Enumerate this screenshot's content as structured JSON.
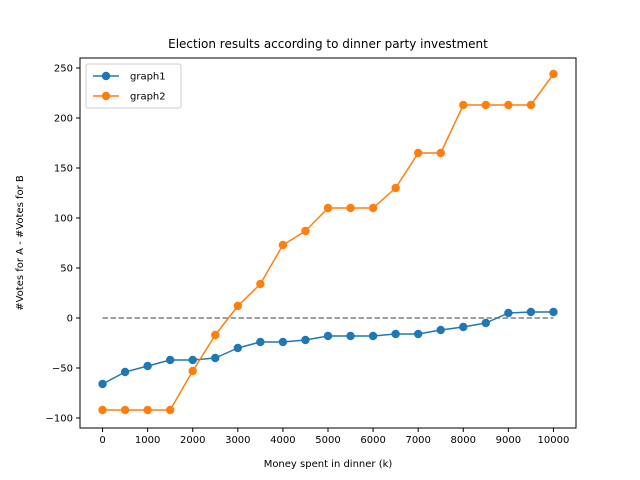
{
  "chart_data": {
    "type": "line",
    "title": "Election results according to dinner party investment",
    "xlabel": "Money spent in dinner (k)",
    "ylabel": "#Votes for A - #Votes for B",
    "xlim": [
      -500,
      10500
    ],
    "ylim": [
      -110,
      260
    ],
    "x_ticks": [
      0,
      1000,
      2000,
      3000,
      4000,
      5000,
      6000,
      7000,
      8000,
      9000,
      10000
    ],
    "y_ticks": [
      -100,
      -50,
      0,
      50,
      100,
      150,
      200,
      250
    ],
    "grid": false,
    "legend_position": "upper-left",
    "x": [
      0,
      500,
      1000,
      1500,
      2000,
      2500,
      3000,
      3500,
      4000,
      4500,
      5000,
      5500,
      6000,
      6500,
      7000,
      7500,
      8000,
      8500,
      9000,
      9500,
      10000
    ],
    "series": [
      {
        "name": "graph1",
        "color": "#1f77b4",
        "marker": "circle",
        "values": [
          -66,
          -54,
          -48,
          -42,
          -42,
          -40,
          -30,
          -24,
          -24,
          -22,
          -18,
          -18,
          -18,
          -16,
          -16,
          -12,
          -9,
          -5,
          5,
          6,
          6
        ]
      },
      {
        "name": "graph2",
        "color": "#ff7f0e",
        "marker": "circle",
        "values": [
          -92,
          -92,
          -92,
          -92,
          -53,
          -17,
          12,
          34,
          73,
          87,
          110,
          110,
          110,
          130,
          165,
          165,
          213,
          213,
          213,
          213,
          244
        ]
      }
    ],
    "reference_line": {
      "style": "dashed",
      "color": "#808080",
      "y": 0,
      "x_range": [
        0,
        10000
      ]
    }
  }
}
